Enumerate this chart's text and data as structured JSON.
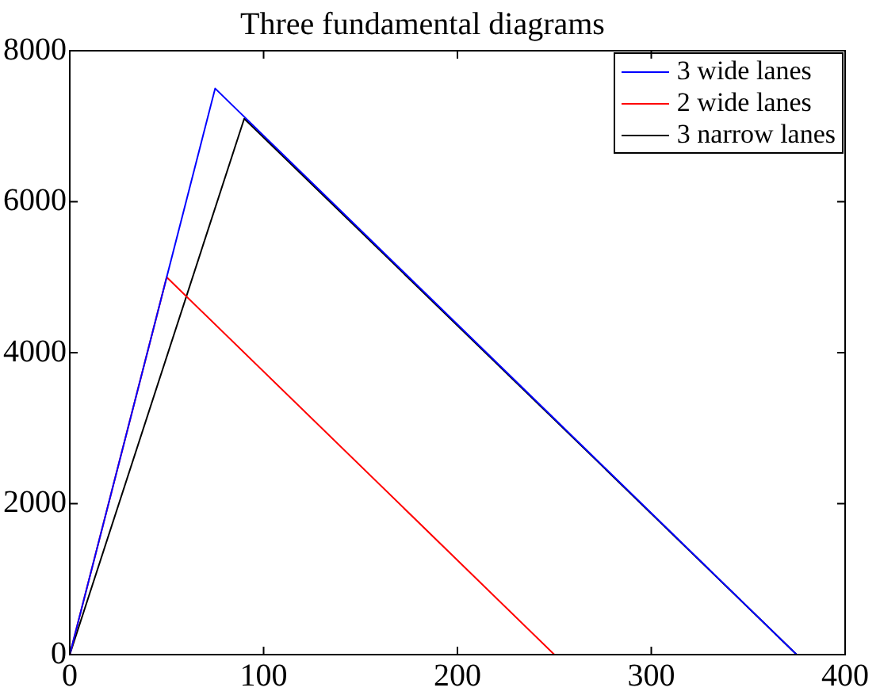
{
  "chart_data": {
    "type": "line",
    "title": "Three fundamental diagrams",
    "series": [
      {
        "name": "3 wide lanes",
        "color": "#0000ff",
        "x": [
          0,
          75,
          375
        ],
        "values": [
          0,
          7500,
          0
        ]
      },
      {
        "name": "2 wide lanes",
        "color": "#ff0000",
        "x": [
          0,
          50,
          250
        ],
        "values": [
          0,
          5000,
          0
        ]
      },
      {
        "name": "3 narrow lanes",
        "color": "#000000",
        "x": [
          0,
          90,
          375
        ],
        "values": [
          0,
          7100,
          0
        ]
      }
    ],
    "xlim": [
      0,
      400
    ],
    "xticks": [
      0,
      100,
      200,
      300,
      400
    ],
    "ylim": [
      0,
      8000
    ],
    "yticks": [
      0,
      2000,
      4000,
      6000,
      8000
    ],
    "legend": "top right",
    "grid": false,
    "marker": "none",
    "line_style": "solid"
  }
}
